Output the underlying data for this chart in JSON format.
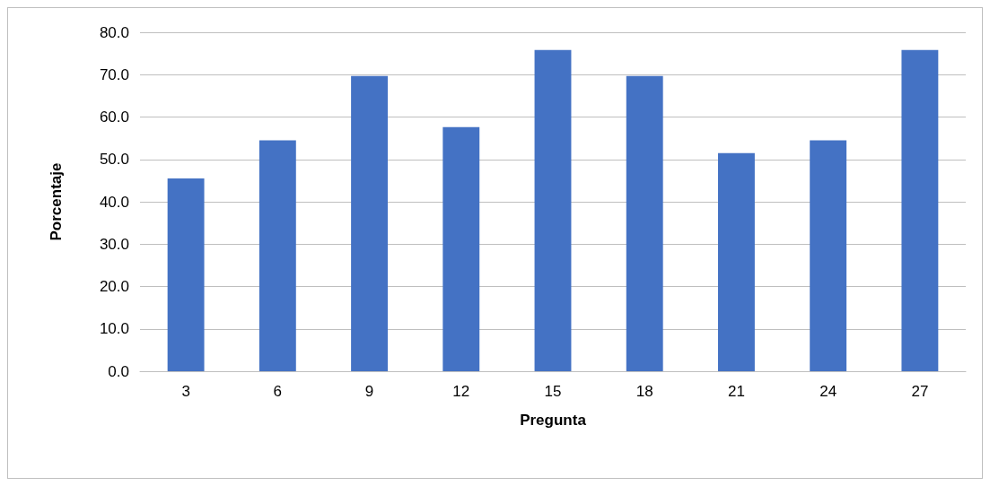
{
  "chart_data": {
    "type": "bar",
    "xlabel": "Pregunta",
    "ylabel": "Porcentaje",
    "categories": [
      "3",
      "6",
      "9",
      "12",
      "15",
      "18",
      "21",
      "24",
      "27"
    ],
    "values": [
      45.5,
      54.5,
      69.7,
      57.6,
      75.8,
      69.7,
      51.5,
      54.5,
      75.8
    ],
    "color": "#4472c4",
    "ylim": [
      0,
      80
    ],
    "yticks": [
      {
        "value": 0,
        "label": "0.0"
      },
      {
        "value": 10,
        "label": "10.0"
      },
      {
        "value": 20,
        "label": "20.0"
      },
      {
        "value": 30,
        "label": "30.0"
      },
      {
        "value": 40,
        "label": "40.0"
      },
      {
        "value": 50,
        "label": "50.0"
      },
      {
        "value": 60,
        "label": "60.0"
      },
      {
        "value": 70,
        "label": "70.0"
      },
      {
        "value": 80,
        "label": "80.0"
      }
    ],
    "grid": "y"
  }
}
